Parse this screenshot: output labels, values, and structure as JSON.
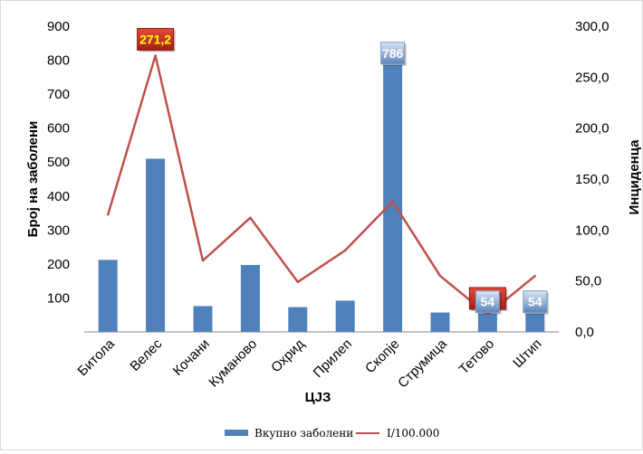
{
  "chart_data": {
    "type": "bar",
    "title": "",
    "xlabel": "ЦЈЗ",
    "ylabel": "Број на заболени",
    "y2label": "Инциденца",
    "categories": [
      "Битола",
      "Велес",
      "Кочани",
      "Куманово",
      "Охрид",
      "Прилеп",
      "Скопје",
      "Струмица",
      "Тетово",
      "Штип"
    ],
    "ylim": [
      0,
      900
    ],
    "y2lim": [
      0,
      300
    ],
    "y_ticks": [
      "900",
      "800",
      "700",
      "600",
      "500",
      "400",
      "300",
      "200",
      "100"
    ],
    "y2_ticks": [
      "300,0",
      "250,0",
      "200,0",
      "150,0",
      "100,0",
      "50,0",
      "0,0"
    ],
    "series": [
      {
        "name": "Вкупно заболени",
        "type": "bar",
        "axis": "left",
        "color": "#4f81bd",
        "values": [
          212,
          510,
          76,
          197,
          73,
          92,
          786,
          57,
          54,
          54
        ]
      },
      {
        "name": "I/100.000",
        "type": "line",
        "axis": "right",
        "color": "#c0504d",
        "values": [
          115,
          271.2,
          70,
          112,
          49,
          80,
          128,
          55,
          16.9,
          55
        ]
      }
    ],
    "annotations": [
      {
        "series": 1,
        "index": 1,
        "text": "271,2",
        "style": "red"
      },
      {
        "series": 0,
        "index": 6,
        "text": "786",
        "style": "blue"
      },
      {
        "series": 1,
        "index": 8,
        "text": "16,9",
        "style": "red"
      },
      {
        "series": 0,
        "index": 8,
        "text": "54",
        "style": "blue"
      },
      {
        "series": 0,
        "index": 9,
        "text": "54",
        "style": "blue"
      }
    ],
    "legend_position": "bottom",
    "grid": false
  }
}
